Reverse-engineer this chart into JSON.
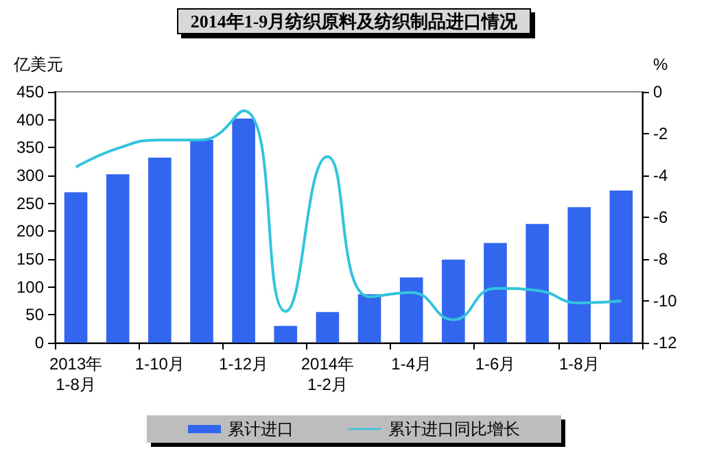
{
  "chart_data": {
    "type": "bar",
    "title": "2014年1-9月纺织原料及纺织制品进口情况",
    "categories": [
      "2013年1-8月",
      null,
      "1-10月",
      null,
      "1-12月",
      null,
      "2014年1-2月",
      null,
      "1-4月",
      null,
      "1-6月",
      null,
      "1-8月",
      null
    ],
    "series": [
      {
        "name": "累计进口",
        "color": "#3366ee",
        "values": [
          270,
          302,
          332,
          364,
          402,
          30,
          55,
          87,
          117,
          149,
          179,
          213,
          243,
          273
        ]
      },
      {
        "name": "累计进口同比增长",
        "type": "line",
        "axis": "y2",
        "color": "#33c4dd",
        "values": [
          -3.6,
          -2.7,
          -2.3,
          -2.3,
          -0.9,
          -10.5,
          -3.1,
          -9.8,
          -9.6,
          -10.9,
          -9.4,
          -9.5,
          -10.1,
          -10.0
        ]
      }
    ],
    "ylabel": "亿美元",
    "y2label": "%",
    "ylim": [
      0,
      450
    ],
    "yticks": [
      0,
      50,
      100,
      150,
      200,
      250,
      300,
      350,
      400,
      450
    ],
    "y2lim": [
      -12,
      0
    ],
    "y2ticks": [
      -12,
      -10,
      -8,
      -6,
      -4,
      -2,
      0
    ],
    "grid": false,
    "legend": "bottom",
    "marker": "none",
    "line_style": "solid"
  }
}
